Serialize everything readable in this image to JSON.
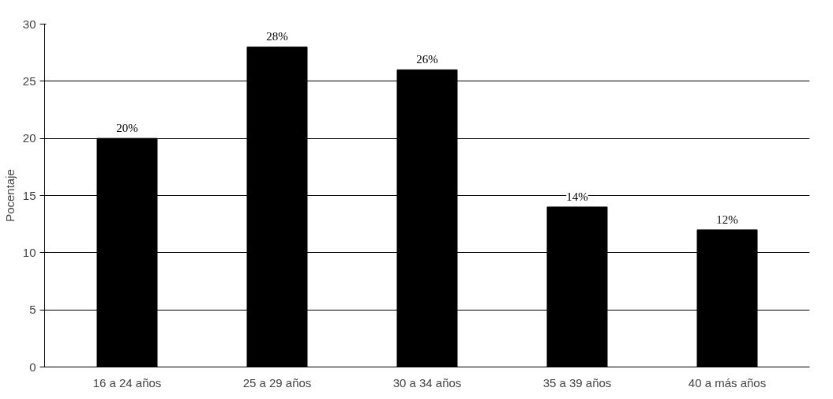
{
  "chart_data": {
    "type": "bar",
    "ylabel": "Pocentaje",
    "categories": [
      "16 a 24 años",
      "25 a 29 años",
      "30 a 34 años",
      "35 a 39 años",
      "40 a más años"
    ],
    "values": [
      20,
      28,
      26,
      14,
      12
    ],
    "color": "#000000",
    "value_labels": [
      "20%",
      "28%",
      "26%",
      "14%",
      "12%"
    ],
    "ylim": [
      0,
      30
    ],
    "yticks": [
      0,
      5,
      10,
      15,
      20,
      25,
      30
    ],
    "grid": "y"
  }
}
